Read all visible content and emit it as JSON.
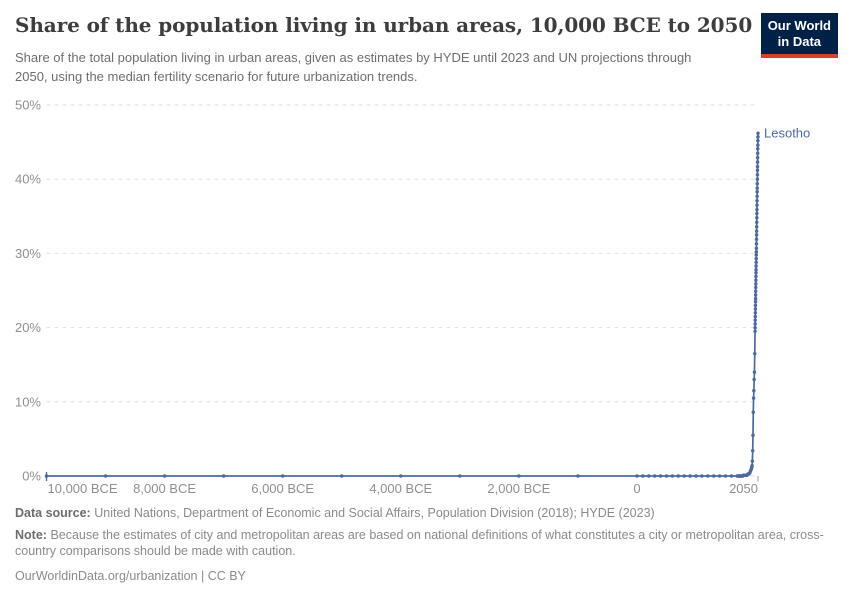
{
  "header": {
    "title": "Share of the population living in urban areas, 10,000 BCE to 2050",
    "subtitle": "Share of the total population living in urban areas, given as estimates by HYDE until 2023 and UN projections through 2050, using the median fertility scenario for future urbanization trends.",
    "logo": {
      "line1": "Our World",
      "line2": "in Data",
      "bg_color": "#002147",
      "stripe_color": "#dc3d33"
    }
  },
  "footer": {
    "data_source_label": "Data source:",
    "data_source_text": "United Nations, Department of Economic and Social Affairs, Population Division (2018); HYDE (2023)",
    "note_label": "Note:",
    "note_text": "Because the estimates of city and metropolitan areas are based on national definitions of what constitutes a city or metropolitan area, cross-country comparisons should be made with caution.",
    "citation": "OurWorldinData.org/urbanization | CC BY"
  },
  "chart_data": {
    "type": "line",
    "title": "Share of the population living in urban areas, 10,000 BCE to 2050",
    "xlabel": "",
    "ylabel": "",
    "xlim": [
      -10000,
      2050
    ],
    "ylim": [
      0,
      50
    ],
    "grid": "dashed-horizontal",
    "legend_position": "end-of-line-label",
    "x_ticks": [
      {
        "year": -10000,
        "label": "10,000 BCE"
      },
      {
        "year": -8000,
        "label": "8,000 BCE"
      },
      {
        "year": -6000,
        "label": "6,000 BCE"
      },
      {
        "year": -4000,
        "label": "4,000 BCE"
      },
      {
        "year": -2000,
        "label": "2,000 BCE"
      },
      {
        "year": 0,
        "label": "0"
      },
      {
        "year": 2050,
        "label": "2050"
      }
    ],
    "y_ticks": [
      {
        "value": 0,
        "label": "0%"
      },
      {
        "value": 10,
        "label": "10%"
      },
      {
        "value": 20,
        "label": "20%"
      },
      {
        "value": 30,
        "label": "30%"
      },
      {
        "value": 40,
        "label": "40%"
      },
      {
        "value": 50,
        "label": "50%"
      }
    ],
    "colors": {
      "line": "#4c6a9c",
      "grid": "#dedede",
      "axis_text": "#8f8f8f",
      "edge_tick": "#9e9e9e"
    },
    "series": [
      {
        "name": "Lesotho",
        "color": "#4c6a9c",
        "points": [
          [
            -10000,
            0
          ],
          [
            -9000,
            0
          ],
          [
            -8000,
            0
          ],
          [
            -7000,
            0
          ],
          [
            -6000,
            0
          ],
          [
            -5000,
            0
          ],
          [
            -4000,
            0
          ],
          [
            -3000,
            0
          ],
          [
            -2000,
            0
          ],
          [
            -1000,
            0
          ],
          [
            0,
            0
          ],
          [
            100,
            0
          ],
          [
            200,
            0
          ],
          [
            300,
            0
          ],
          [
            400,
            0
          ],
          [
            500,
            0
          ],
          [
            600,
            0
          ],
          [
            700,
            0
          ],
          [
            800,
            0
          ],
          [
            900,
            0
          ],
          [
            1000,
            0
          ],
          [
            1100,
            0
          ],
          [
            1200,
            0
          ],
          [
            1300,
            0
          ],
          [
            1400,
            0
          ],
          [
            1500,
            0
          ],
          [
            1600,
            0
          ],
          [
            1700,
            0
          ],
          [
            1710,
            0
          ],
          [
            1720,
            0
          ],
          [
            1730,
            0
          ],
          [
            1740,
            0
          ],
          [
            1750,
            0
          ],
          [
            1760,
            0
          ],
          [
            1770,
            0
          ],
          [
            1780,
            0
          ],
          [
            1790,
            0
          ],
          [
            1800,
            0.1
          ],
          [
            1810,
            0.1
          ],
          [
            1820,
            0.1
          ],
          [
            1830,
            0.1
          ],
          [
            1840,
            0.1
          ],
          [
            1850,
            0.1
          ],
          [
            1860,
            0.1
          ],
          [
            1870,
            0.2
          ],
          [
            1880,
            0.2
          ],
          [
            1890,
            0.3
          ],
          [
            1900,
            0.3
          ],
          [
            1910,
            0.4
          ],
          [
            1920,
            0.6
          ],
          [
            1930,
            0.8
          ],
          [
            1940,
            1.0
          ],
          [
            1945,
            1.2
          ],
          [
            1950,
            1.4
          ],
          [
            1955,
            2.0
          ],
          [
            1960,
            3.4
          ],
          [
            1965,
            5.5
          ],
          [
            1970,
            8.6
          ],
          [
            1975,
            10.5
          ],
          [
            1980,
            11.5
          ],
          [
            1985,
            13.0
          ],
          [
            1990,
            14.0
          ],
          [
            1995,
            16.5
          ],
          [
            2000,
            19.5
          ],
          [
            2001,
            20.0
          ],
          [
            2002,
            20.5
          ],
          [
            2003,
            21.0
          ],
          [
            2004,
            21.5
          ],
          [
            2005,
            22.0
          ],
          [
            2006,
            22.5
          ],
          [
            2007,
            23.0
          ],
          [
            2008,
            23.5
          ],
          [
            2009,
            23.9
          ],
          [
            2010,
            24.4
          ],
          [
            2011,
            24.9
          ],
          [
            2012,
            25.4
          ],
          [
            2013,
            25.9
          ],
          [
            2014,
            26.4
          ],
          [
            2015,
            26.9
          ],
          [
            2016,
            27.4
          ],
          [
            2017,
            27.8
          ],
          [
            2018,
            28.3
          ],
          [
            2019,
            28.8
          ],
          [
            2020,
            29.3
          ],
          [
            2021,
            29.8
          ],
          [
            2022,
            30.2
          ],
          [
            2023,
            30.7
          ],
          [
            2024,
            31.3
          ],
          [
            2025,
            31.9
          ],
          [
            2026,
            32.5
          ],
          [
            2027,
            33.0
          ],
          [
            2028,
            33.6
          ],
          [
            2029,
            34.2
          ],
          [
            2030,
            34.8
          ],
          [
            2031,
            35.4
          ],
          [
            2032,
            35.9
          ],
          [
            2033,
            36.5
          ],
          [
            2034,
            37.1
          ],
          [
            2035,
            37.7
          ],
          [
            2036,
            38.3
          ],
          [
            2037,
            38.8
          ],
          [
            2038,
            39.4
          ],
          [
            2039,
            40.0
          ],
          [
            2040,
            40.6
          ],
          [
            2041,
            41.2
          ],
          [
            2042,
            41.7
          ],
          [
            2043,
            42.3
          ],
          [
            2044,
            42.9
          ],
          [
            2045,
            43.5
          ],
          [
            2046,
            44.1
          ],
          [
            2047,
            44.6
          ],
          [
            2048,
            45.2
          ],
          [
            2049,
            45.7
          ],
          [
            2050,
            46.2
          ]
        ]
      }
    ]
  }
}
